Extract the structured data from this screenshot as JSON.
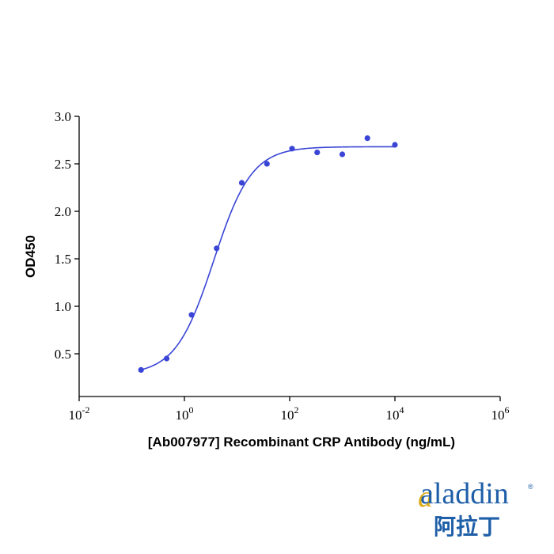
{
  "chart_data": {
    "type": "scatter",
    "title": "",
    "xlabel": "[Ab007977] Recombinant CRP Antibody (ng/mL)",
    "ylabel": "OD450",
    "xscale": "log",
    "xlim": [
      0.01,
      1000000
    ],
    "ylim": [
      0.05,
      3.0
    ],
    "x_ticks": [
      {
        "value": 0.01,
        "base": "10",
        "exp": "-2"
      },
      {
        "value": 1,
        "base": "10",
        "exp": "0"
      },
      {
        "value": 100,
        "base": "10",
        "exp": "2"
      },
      {
        "value": 10000,
        "base": "10",
        "exp": "4"
      },
      {
        "value": 1000000,
        "base": "10",
        "exp": "6"
      }
    ],
    "y_ticks": [
      {
        "value": 0.5,
        "label": "0.5"
      },
      {
        "value": 1.0,
        "label": "1.0"
      },
      {
        "value": 1.5,
        "label": "1.5"
      },
      {
        "value": 2.0,
        "label": "2.0"
      },
      {
        "value": 2.5,
        "label": "2.5"
      },
      {
        "value": 3.0,
        "label": "3.0"
      }
    ],
    "grid": false,
    "legend": "none",
    "series": [
      {
        "color": "#3a45d6",
        "points": [
          {
            "x": 0.15,
            "y": 0.33
          },
          {
            "x": 0.46,
            "y": 0.45
          },
          {
            "x": 1.37,
            "y": 0.91
          },
          {
            "x": 4.1,
            "y": 1.61
          },
          {
            "x": 12.3,
            "y": 2.3
          },
          {
            "x": 37,
            "y": 2.5
          },
          {
            "x": 111,
            "y": 2.66
          },
          {
            "x": 333,
            "y": 2.62
          },
          {
            "x": 1000,
            "y": 2.6
          },
          {
            "x": 3000,
            "y": 2.77
          },
          {
            "x": 10000,
            "y": 2.7
          }
        ]
      }
    ],
    "fit_curve": {
      "model": "4PL",
      "bottom": 0.28,
      "top": 2.68,
      "ec50": 3.6,
      "hill": 1.2,
      "x_range": [
        0.15,
        10000
      ],
      "color": "#3a45d6"
    }
  },
  "logo": {
    "latin": "aladdin",
    "registered": "®",
    "cjk": "阿拉丁",
    "color": "#1f5fa8",
    "accent": "#d9a400"
  }
}
